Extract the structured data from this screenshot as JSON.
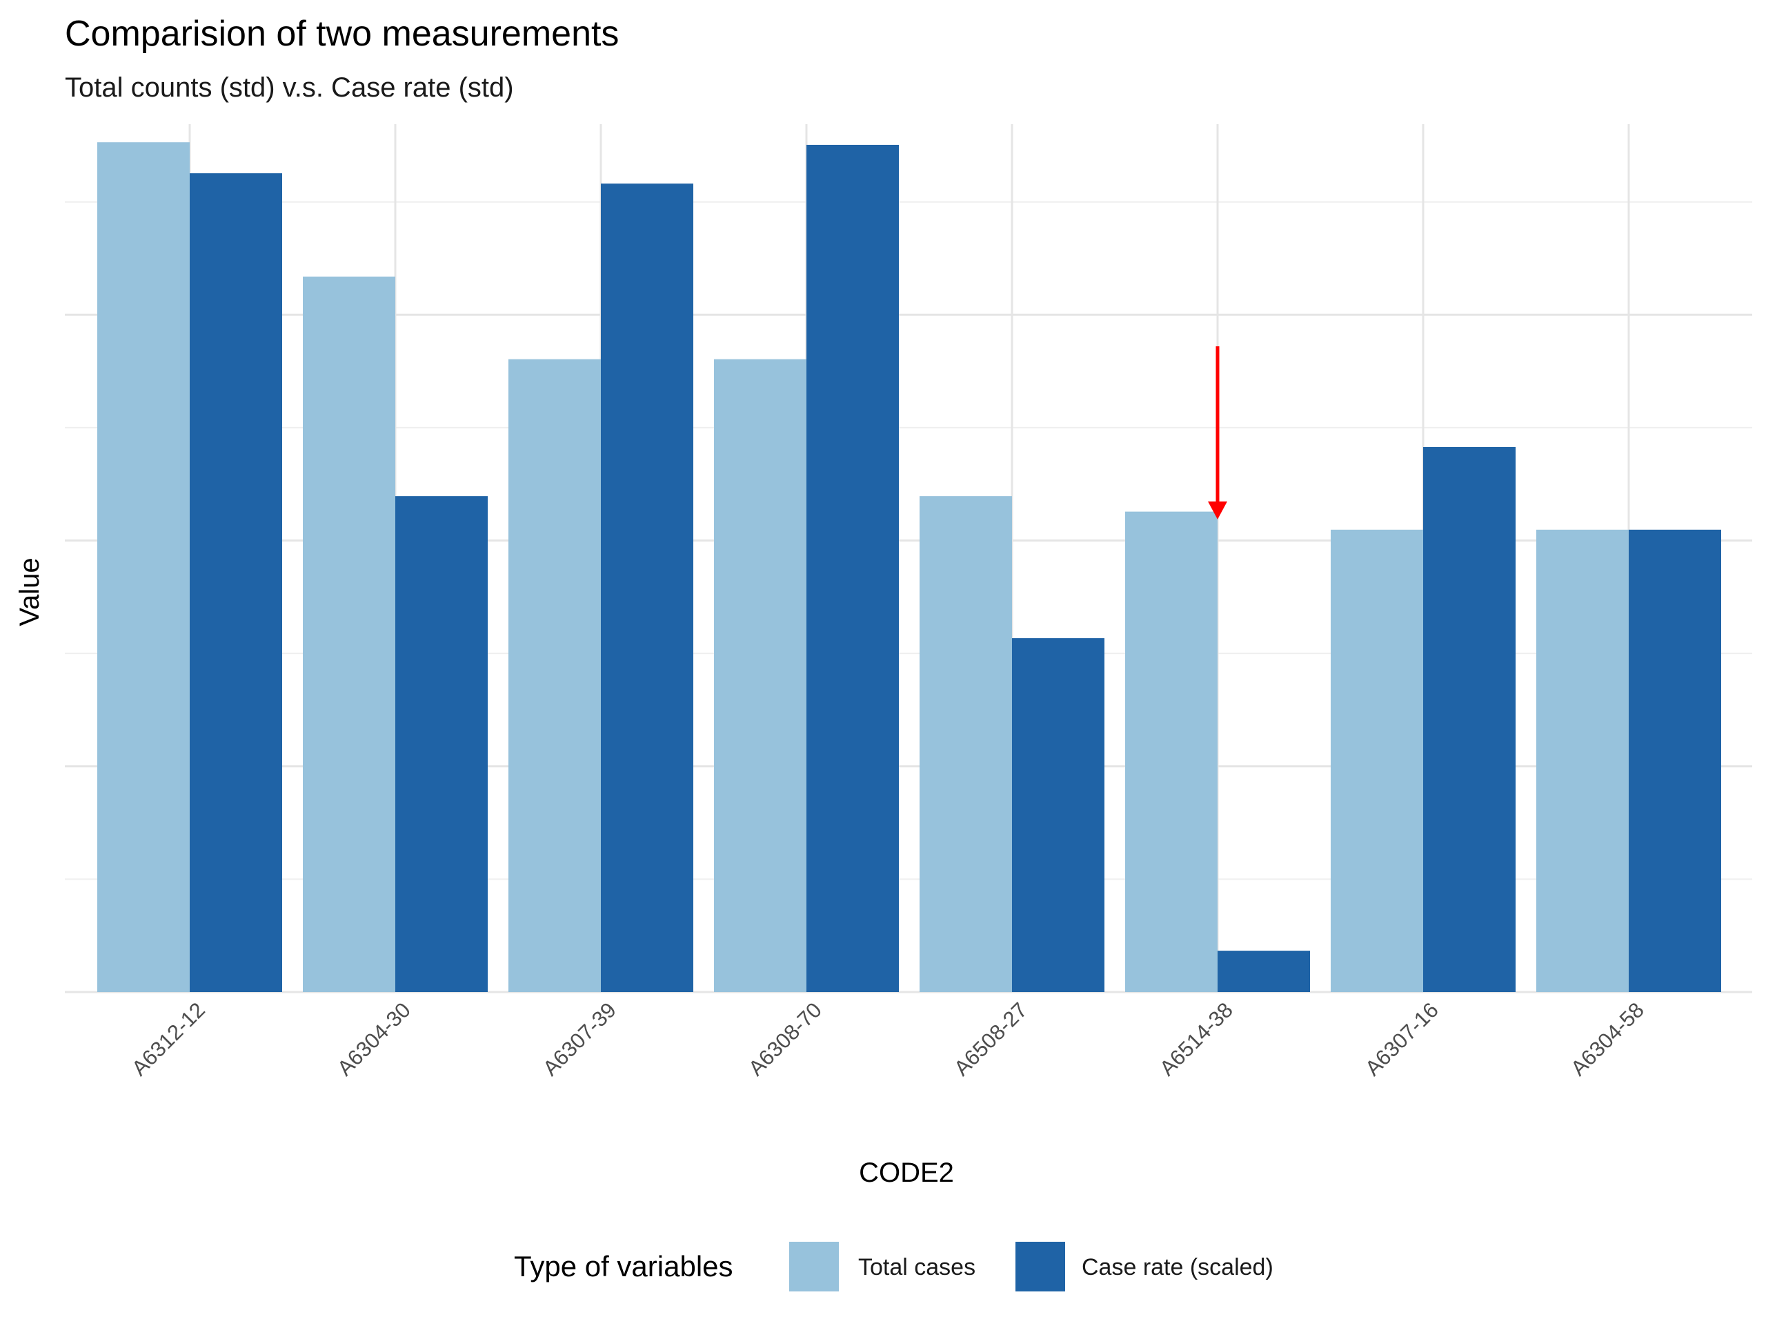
{
  "chart_data": {
    "type": "bar",
    "title": "Comparision of two measurements",
    "subtitle": "Total counts (std) v.s. Case rate (std)",
    "xlabel": "CODE2",
    "ylabel": "Value",
    "categories": [
      "A6312-12",
      "A6304-30",
      "A6307-39",
      "A6308-70",
      "A6508-27",
      "A6514-38",
      "A6307-16",
      "A6304-58"
    ],
    "series": [
      {
        "name": "Total cases",
        "color": "#97c2dc",
        "values": [
          1.81,
          1.29,
          0.97,
          0.97,
          0.44,
          0.38,
          0.31,
          0.31
        ]
      },
      {
        "name": "Case rate (scaled)",
        "color": "#1f63a6",
        "values": [
          1.69,
          0.44,
          1.65,
          1.8,
          -0.11,
          -1.32,
          0.63,
          0.31
        ]
      }
    ],
    "ylim": [
      -1.48,
      1.88
    ],
    "gridlines_major": [
      -1.48,
      -0.606,
      0.268,
      1.142
    ],
    "gridlines_minor": [
      -1.043,
      -0.169,
      0.705,
      1.579
    ],
    "grid": true,
    "y_tick_labels_shown": false,
    "annotation": {
      "type": "arrow",
      "color": "#ff0000",
      "category": "A6514-38",
      "from_value": 1.02,
      "to_value": 0.35
    },
    "legend": {
      "title": "Type of variables",
      "position": "bottom",
      "entries": [
        "Total cases",
        "Case rate (scaled)"
      ]
    }
  }
}
